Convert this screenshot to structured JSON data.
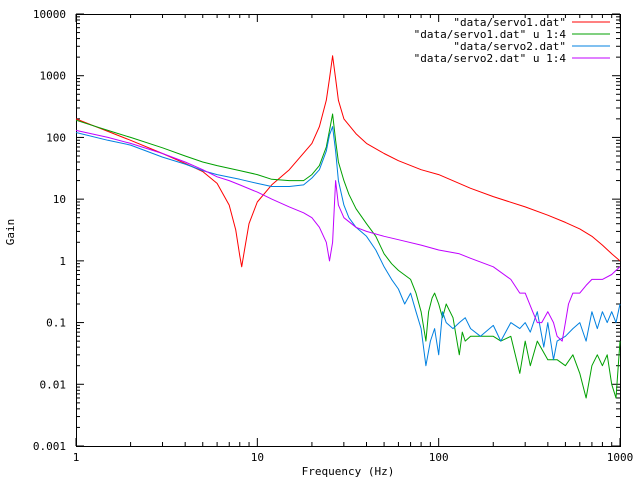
{
  "chart_data": {
    "type": "line",
    "title": "",
    "xlabel": "Frequency (Hz)",
    "ylabel": "Gain",
    "xscale": "log",
    "yscale": "log",
    "xlim": [
      1,
      1000
    ],
    "ylim": [
      0.001,
      10000
    ],
    "grid": false,
    "legend_position": "top-right",
    "x_ticks": [
      {
        "value": 1,
        "label": "1"
      },
      {
        "value": 10,
        "label": "10"
      },
      {
        "value": 100,
        "label": "100"
      },
      {
        "value": 1000,
        "label": "1000"
      }
    ],
    "y_ticks": [
      {
        "value": 0.001,
        "label": "0.001"
      },
      {
        "value": 0.01,
        "label": "0.01"
      },
      {
        "value": 0.1,
        "label": "0.1"
      },
      {
        "value": 1,
        "label": "1"
      },
      {
        "value": 10,
        "label": "10"
      },
      {
        "value": 100,
        "label": "100"
      },
      {
        "value": 1000,
        "label": "1000"
      },
      {
        "value": 10000,
        "label": "10000"
      }
    ],
    "series": [
      {
        "name": "\"data/servo1.dat\"",
        "color": "#ff0000",
        "points": [
          [
            1,
            200
          ],
          [
            1.5,
            125
          ],
          [
            2,
            90
          ],
          [
            3,
            55
          ],
          [
            4,
            38
          ],
          [
            5,
            28
          ],
          [
            6,
            18
          ],
          [
            7,
            8
          ],
          [
            7.6,
            3.2
          ],
          [
            8,
            1.2
          ],
          [
            8.2,
            0.8
          ],
          [
            8.5,
            1.5
          ],
          [
            9,
            4
          ],
          [
            10,
            9
          ],
          [
            12,
            17
          ],
          [
            15,
            30
          ],
          [
            20,
            80
          ],
          [
            22,
            150
          ],
          [
            24,
            400
          ],
          [
            25,
            900
          ],
          [
            26,
            2100
          ],
          [
            27,
            900
          ],
          [
            28,
            400
          ],
          [
            30,
            200
          ],
          [
            35,
            115
          ],
          [
            40,
            80
          ],
          [
            50,
            55
          ],
          [
            60,
            42
          ],
          [
            80,
            30
          ],
          [
            100,
            25
          ],
          [
            150,
            15
          ],
          [
            200,
            11
          ],
          [
            300,
            7.5
          ],
          [
            400,
            5.5
          ],
          [
            500,
            4.2
          ],
          [
            600,
            3.3
          ],
          [
            700,
            2.5
          ],
          [
            800,
            1.8
          ],
          [
            900,
            1.3
          ],
          [
            1000,
            1
          ]
        ]
      },
      {
        "name": "\"data/servo1.dat\" u 1:4",
        "color": "#00a000",
        "points": [
          [
            1,
            190
          ],
          [
            1.5,
            130
          ],
          [
            2,
            100
          ],
          [
            3,
            68
          ],
          [
            4,
            50
          ],
          [
            5,
            40
          ],
          [
            6,
            35
          ],
          [
            8,
            29
          ],
          [
            10,
            25
          ],
          [
            12,
            21
          ],
          [
            15,
            20
          ],
          [
            18,
            20
          ],
          [
            20,
            25
          ],
          [
            22,
            35
          ],
          [
            24,
            70
          ],
          [
            25,
            130
          ],
          [
            26,
            240
          ],
          [
            27,
            90
          ],
          [
            28,
            40
          ],
          [
            30,
            20
          ],
          [
            32,
            12
          ],
          [
            35,
            7
          ],
          [
            40,
            4
          ],
          [
            45,
            2.5
          ],
          [
            50,
            1.3
          ],
          [
            55,
            0.9
          ],
          [
            60,
            0.7
          ],
          [
            70,
            0.5
          ],
          [
            75,
            0.3
          ],
          [
            80,
            0.15
          ],
          [
            85,
            0.05
          ],
          [
            88,
            0.15
          ],
          [
            92,
            0.25
          ],
          [
            95,
            0.3
          ],
          [
            100,
            0.2
          ],
          [
            105,
            0.12
          ],
          [
            110,
            0.2
          ],
          [
            120,
            0.12
          ],
          [
            130,
            0.03
          ],
          [
            135,
            0.07
          ],
          [
            140,
            0.05
          ],
          [
            150,
            0.06
          ],
          [
            160,
            0.06
          ],
          [
            180,
            0.06
          ],
          [
            200,
            0.06
          ],
          [
            220,
            0.05
          ],
          [
            250,
            0.06
          ],
          [
            280,
            0.015
          ],
          [
            300,
            0.05
          ],
          [
            320,
            0.02
          ],
          [
            350,
            0.05
          ],
          [
            400,
            0.025
          ],
          [
            450,
            0.025
          ],
          [
            500,
            0.02
          ],
          [
            550,
            0.03
          ],
          [
            600,
            0.015
          ],
          [
            650,
            0.006
          ],
          [
            700,
            0.02
          ],
          [
            750,
            0.03
          ],
          [
            800,
            0.02
          ],
          [
            850,
            0.03
          ],
          [
            900,
            0.01
          ],
          [
            950,
            0.006
          ],
          [
            1000,
            0.05
          ]
        ]
      },
      {
        "name": "\"data/servo2.dat\"",
        "color": "#0080e0",
        "points": [
          [
            1,
            120
          ],
          [
            1.5,
            90
          ],
          [
            2,
            75
          ],
          [
            3,
            48
          ],
          [
            4,
            37
          ],
          [
            5,
            29
          ],
          [
            6,
            25
          ],
          [
            8,
            21
          ],
          [
            10,
            18
          ],
          [
            12,
            16
          ],
          [
            15,
            16
          ],
          [
            18,
            17
          ],
          [
            20,
            22
          ],
          [
            22,
            30
          ],
          [
            24,
            60
          ],
          [
            25,
            110
          ],
          [
            26,
            150
          ],
          [
            27,
            60
          ],
          [
            28,
            20
          ],
          [
            30,
            8
          ],
          [
            32,
            5
          ],
          [
            35,
            3.5
          ],
          [
            40,
            2.5
          ],
          [
            45,
            1.5
          ],
          [
            50,
            0.8
          ],
          [
            55,
            0.5
          ],
          [
            60,
            0.35
          ],
          [
            65,
            0.2
          ],
          [
            70,
            0.3
          ],
          [
            75,
            0.15
          ],
          [
            80,
            0.08
          ],
          [
            85,
            0.02
          ],
          [
            90,
            0.05
          ],
          [
            95,
            0.08
          ],
          [
            100,
            0.03
          ],
          [
            105,
            0.15
          ],
          [
            110,
            0.1
          ],
          [
            120,
            0.08
          ],
          [
            130,
            0.1
          ],
          [
            140,
            0.12
          ],
          [
            150,
            0.08
          ],
          [
            170,
            0.06
          ],
          [
            200,
            0.09
          ],
          [
            220,
            0.05
          ],
          [
            250,
            0.1
          ],
          [
            280,
            0.08
          ],
          [
            300,
            0.1
          ],
          [
            320,
            0.07
          ],
          [
            350,
            0.15
          ],
          [
            380,
            0.04
          ],
          [
            400,
            0.1
          ],
          [
            430,
            0.025
          ],
          [
            450,
            0.05
          ],
          [
            500,
            0.06
          ],
          [
            550,
            0.08
          ],
          [
            600,
            0.1
          ],
          [
            650,
            0.05
          ],
          [
            700,
            0.15
          ],
          [
            750,
            0.08
          ],
          [
            800,
            0.15
          ],
          [
            850,
            0.1
          ],
          [
            900,
            0.15
          ],
          [
            950,
            0.1
          ],
          [
            1000,
            0.2
          ]
        ]
      },
      {
        "name": "\"data/servo2.dat\" u 1:4",
        "color": "#c000ff",
        "points": [
          [
            1,
            130
          ],
          [
            1.5,
            100
          ],
          [
            2,
            80
          ],
          [
            3,
            55
          ],
          [
            4,
            40
          ],
          [
            5,
            30
          ],
          [
            6,
            23
          ],
          [
            7,
            20
          ],
          [
            8,
            17
          ],
          [
            10,
            13
          ],
          [
            12,
            10
          ],
          [
            15,
            7.5
          ],
          [
            18,
            6
          ],
          [
            20,
            5
          ],
          [
            22,
            3.5
          ],
          [
            24,
            2
          ],
          [
            25,
            1
          ],
          [
            26,
            2
          ],
          [
            27,
            20
          ],
          [
            28,
            8
          ],
          [
            30,
            5
          ],
          [
            35,
            3.5
          ],
          [
            40,
            3
          ],
          [
            50,
            2.5
          ],
          [
            60,
            2.2
          ],
          [
            80,
            1.8
          ],
          [
            100,
            1.5
          ],
          [
            130,
            1.3
          ],
          [
            150,
            1.1
          ],
          [
            200,
            0.8
          ],
          [
            250,
            0.5
          ],
          [
            280,
            0.3
          ],
          [
            300,
            0.3
          ],
          [
            330,
            0.15
          ],
          [
            350,
            0.1
          ],
          [
            370,
            0.1
          ],
          [
            400,
            0.15
          ],
          [
            430,
            0.1
          ],
          [
            450,
            0.06
          ],
          [
            480,
            0.05
          ],
          [
            500,
            0.1
          ],
          [
            520,
            0.2
          ],
          [
            550,
            0.3
          ],
          [
            600,
            0.3
          ],
          [
            650,
            0.4
          ],
          [
            700,
            0.5
          ],
          [
            800,
            0.5
          ],
          [
            900,
            0.6
          ],
          [
            950,
            0.7
          ],
          [
            1000,
            0.8
          ]
        ]
      }
    ]
  }
}
